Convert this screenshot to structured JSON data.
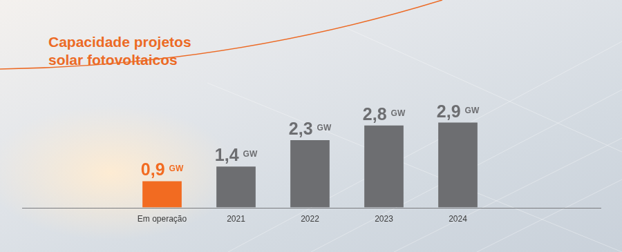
{
  "chart_data": {
    "type": "bar",
    "title": [
      "Capacidade projetos",
      "solar fotovoltaicos"
    ],
    "categories": [
      "Em operação",
      "2021",
      "2022",
      "2023",
      "2024"
    ],
    "values": [
      0.9,
      1.4,
      2.3,
      2.8,
      2.9
    ],
    "value_labels": [
      "0,9 GW",
      "1,4 GW",
      "2,3 GW",
      "2,8 GW",
      "2,9 GW"
    ],
    "colors": [
      "#f26b21",
      "#6d6e71",
      "#6d6e71",
      "#6d6e71",
      "#6d6e71"
    ],
    "ylim": [
      0,
      6
    ],
    "grid": false,
    "data_labels": true,
    "tick_labels": "x"
  }
}
